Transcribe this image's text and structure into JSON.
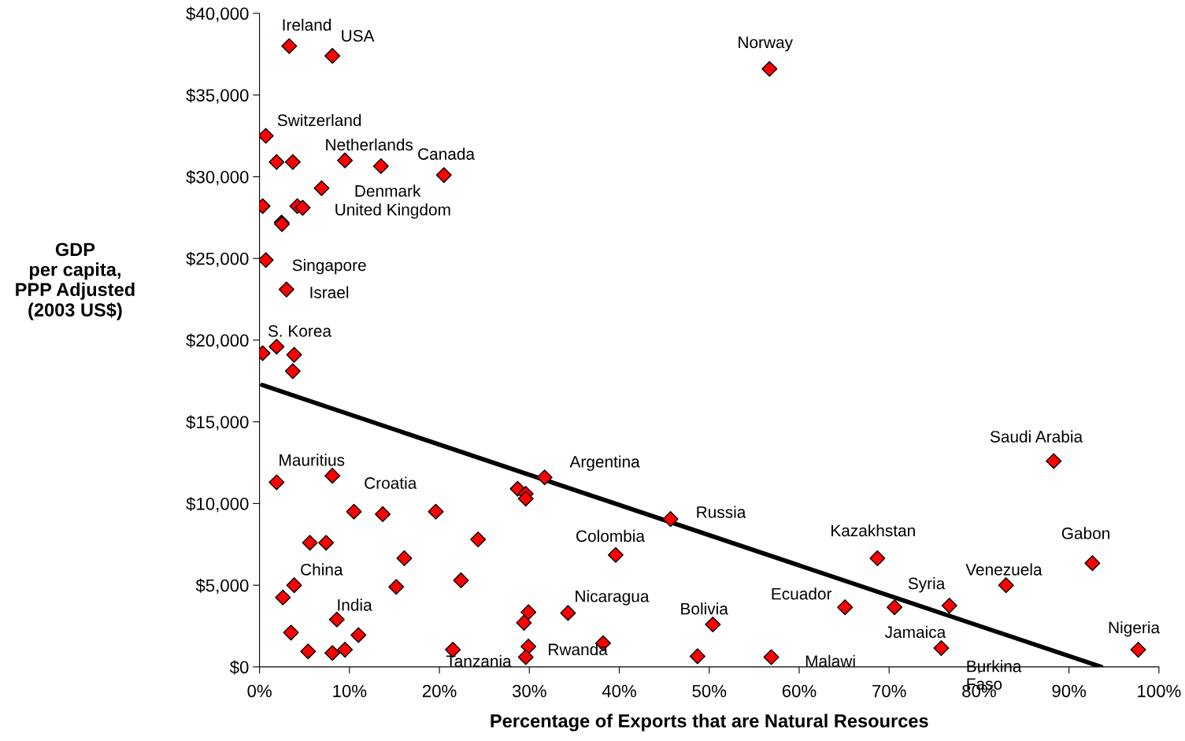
{
  "chart_data": {
    "type": "scatter",
    "xlabel": "Percentage of Exports that are Natural Resources",
    "ylabel": "GDP\nper capita,\nPPP Adjusted\n(2003 US$)",
    "xlim": [
      0,
      100
    ],
    "ylim": [
      0,
      40000
    ],
    "xticks": [
      {
        "value": 0,
        "label": "0%"
      },
      {
        "value": 10,
        "label": "10%"
      },
      {
        "value": 20,
        "label": "20%"
      },
      {
        "value": 30,
        "label": "30%"
      },
      {
        "value": 40,
        "label": "40%"
      },
      {
        "value": 50,
        "label": "50%"
      },
      {
        "value": 60,
        "label": "60%"
      },
      {
        "value": 70,
        "label": "70%"
      },
      {
        "value": 80,
        "label": "80%"
      },
      {
        "value": 90,
        "label": "90%"
      },
      {
        "value": 100,
        "label": "100%"
      }
    ],
    "yticks": [
      {
        "value": 0,
        "label": "$0"
      },
      {
        "value": 5000,
        "label": "$5,000"
      },
      {
        "value": 10000,
        "label": "$10,000"
      },
      {
        "value": 15000,
        "label": "$15,000"
      },
      {
        "value": 20000,
        "label": "$20,000"
      },
      {
        "value": 25000,
        "label": "$25,000"
      },
      {
        "value": 30000,
        "label": "$30,000"
      },
      {
        "value": 35000,
        "label": "$35,000"
      },
      {
        "value": 40000,
        "label": "$40,000"
      }
    ],
    "grid": false,
    "legend": false,
    "marker": "diamond",
    "series": [
      {
        "color": "#ff0000",
        "x": [
          3.3,
          8.1,
          56.7,
          0.7,
          1.9,
          3.7,
          9.5,
          13.5,
          20.5,
          6.9,
          0.35,
          4.2,
          4.8,
          2.45,
          2.5,
          0.7,
          3.0,
          1.9,
          0.35,
          3.85,
          3.7,
          1.9,
          8.1,
          10.5,
          13.7,
          5.6,
          7.4,
          16.1,
          19.6,
          24.3,
          15.2,
          22.4,
          28.7,
          29.6,
          29.6,
          31.7,
          45.7,
          39.6,
          3.85,
          2.6,
          3.5,
          8.6,
          11.0,
          5.4,
          8.1,
          9.5,
          21.5,
          29.9,
          29.4,
          29.9,
          29.6,
          34.3,
          38.2,
          50.4,
          48.7,
          56.9,
          68.7,
          65.1,
          70.6,
          76.7,
          75.8,
          83.0,
          88.3,
          92.6,
          97.7
        ],
        "values": [
          38000,
          37400,
          36600,
          32500,
          30900,
          30900,
          31000,
          30650,
          30100,
          29300,
          28200,
          28200,
          28100,
          27200,
          27100,
          24900,
          23100,
          19600,
          19200,
          19100,
          18100,
          11300,
          11700,
          9500,
          9350,
          7600,
          7600,
          6650,
          9500,
          7800,
          4900,
          5300,
          10900,
          10600,
          10300,
          11600,
          9050,
          6850,
          5000,
          4250,
          2100,
          2900,
          1950,
          950,
          850,
          1050,
          1050,
          3350,
          2700,
          1250,
          600,
          3300,
          1450,
          2600,
          650,
          600,
          6650,
          3650,
          3650,
          3750,
          1150,
          5000,
          12600,
          6350,
          1050
        ]
      },
      {
        "type": "line",
        "color": "#000000",
        "marker": "none",
        "x": [
          0.3,
          93.6
        ],
        "values": [
          17250,
          0
        ]
      }
    ],
    "annotations": [
      {
        "text": "Ireland",
        "x": 3.3,
        "y": 38000
      },
      {
        "text": "USA",
        "x": 8.1,
        "y": 37400
      },
      {
        "text": "Norway",
        "x": 56.7,
        "y": 36600
      },
      {
        "text": "Switzerland",
        "x": 0.7,
        "y": 32500
      },
      {
        "text": "Netherlands",
        "x": 9.5,
        "y": 31000
      },
      {
        "text": "Canada",
        "x": 20.5,
        "y": 30100
      },
      {
        "text": "Denmark",
        "x": 13.5,
        "y": 30650
      },
      {
        "text": "United Kingdom",
        "x": 4.8,
        "y": 28100
      },
      {
        "text": "Singapore",
        "x": 0.7,
        "y": 24900
      },
      {
        "text": "Israel",
        "x": 3.0,
        "y": 23100
      },
      {
        "text": "S. Korea",
        "x": 1.9,
        "y": 19600
      },
      {
        "text": "Mauritius",
        "x": 1.9,
        "y": 11300
      },
      {
        "text": "Croatia",
        "x": 8.1,
        "y": 11700
      },
      {
        "text": "Argentina",
        "x": 31.7,
        "y": 11600
      },
      {
        "text": "Russia",
        "x": 45.7,
        "y": 9050
      },
      {
        "text": "Colombia",
        "x": 39.6,
        "y": 6850
      },
      {
        "text": "China",
        "x": 3.85,
        "y": 5000
      },
      {
        "text": "India",
        "x": 8.6,
        "y": 2900
      },
      {
        "text": "Nicaragua",
        "x": 34.3,
        "y": 3300
      },
      {
        "text": "Bolivia",
        "x": 50.4,
        "y": 2600
      },
      {
        "text": "Tanzania",
        "x": 29.6,
        "y": 600
      },
      {
        "text": "Rwanda",
        "x": 29.9,
        "y": 1250
      },
      {
        "text": "Malawi",
        "x": 56.9,
        "y": 600
      },
      {
        "text": "Kazakhstan",
        "x": 68.7,
        "y": 6650
      },
      {
        "text": "Ecuador",
        "x": 65.1,
        "y": 3650
      },
      {
        "text": "Jamaica",
        "x": 70.6,
        "y": 3650
      },
      {
        "text": "Syria",
        "x": 76.7,
        "y": 3750
      },
      {
        "text": "Venezuela",
        "x": 83.0,
        "y": 5000
      },
      {
        "text": "Saudi Arabia",
        "x": 88.3,
        "y": 12600
      },
      {
        "text": "Gabon",
        "x": 92.6,
        "y": 6350
      },
      {
        "text": "Nigeria",
        "x": 97.7,
        "y": 1050
      },
      {
        "text": "Burkina\nFaso",
        "x": 75.8,
        "y": 1150
      }
    ]
  }
}
